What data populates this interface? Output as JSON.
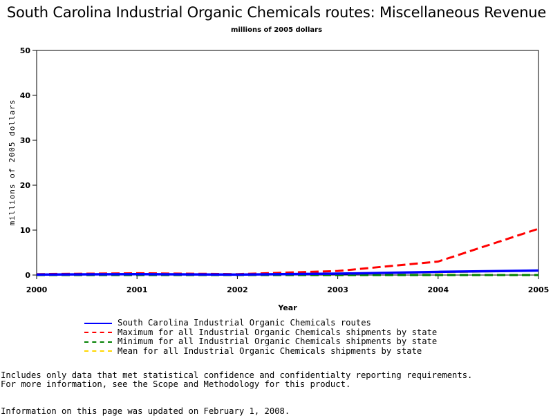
{
  "chart_data": {
    "type": "line",
    "title": "South Carolina Industrial Organic Chemicals routes: Miscellaneous Revenue",
    "subtitle": "millions of 2005 dollars",
    "xlabel": "Year",
    "ylabel": "millions of 2005 dollars",
    "xlim": [
      2000,
      2005
    ],
    "ylim": [
      0,
      50
    ],
    "x_ticks": [
      "2000",
      "2001",
      "2002",
      "2003",
      "2004",
      "2005"
    ],
    "y_ticks": [
      "0",
      "10",
      "20",
      "30",
      "40",
      "50"
    ],
    "x": [
      2000,
      2001,
      2002,
      2003,
      2004,
      2005
    ],
    "series": [
      {
        "name": "South Carolina Industrial Organic Chemicals routes",
        "color": "#0000ff",
        "style": "solid",
        "values": [
          0.1,
          0.2,
          0.1,
          0.3,
          0.7,
          1.0
        ]
      },
      {
        "name": "Maximum for all Industrial Organic Chemicals shipments by state",
        "color": "#ff0000",
        "style": "dashed",
        "values": [
          0.2,
          0.4,
          0.2,
          0.9,
          3.0,
          10.3
        ]
      },
      {
        "name": "Minimum for all Industrial Organic Chemicals shipments by state",
        "color": "#008000",
        "style": "dashed",
        "values": [
          0.0,
          0.0,
          0.0,
          0.0,
          0.0,
          0.0
        ]
      },
      {
        "name": "Mean for all Industrial Organic Chemicals shipments by state",
        "color": "#ffd700",
        "style": "dashed",
        "values": [
          0.1,
          0.2,
          0.1,
          0.3,
          0.6,
          1.0
        ]
      }
    ],
    "grid": false,
    "legend_position": "bottom"
  },
  "footnotes": {
    "line1": "Includes only data that met statistical confidence and confidentialty reporting requirements.",
    "line2": "For more information, see the Scope and Methodology for this product.",
    "updated": "Information on this page was updated on February 1, 2008."
  }
}
